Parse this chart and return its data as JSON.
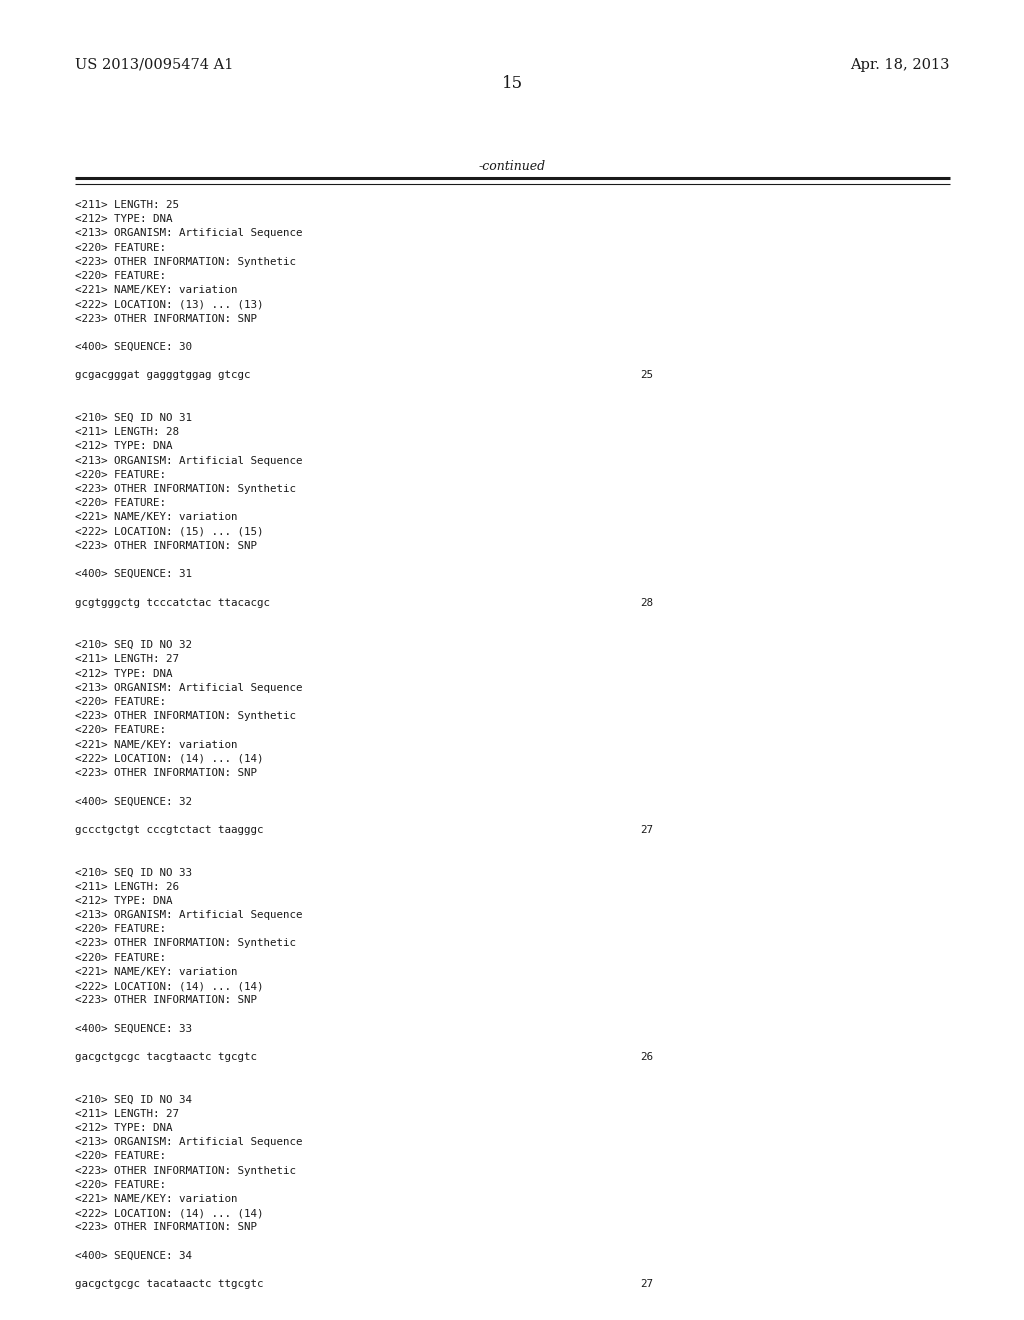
{
  "bg_color": "#ffffff",
  "header_left": "US 2013/0095474 A1",
  "header_right": "Apr. 18, 2013",
  "page_number": "15",
  "continued_label": "-continued",
  "content_lines": [
    {
      "text": "<211> LENGTH: 25",
      "indent": false
    },
    {
      "text": "<212> TYPE: DNA",
      "indent": false
    },
    {
      "text": "<213> ORGANISM: Artificial Sequence",
      "indent": false
    },
    {
      "text": "<220> FEATURE:",
      "indent": false
    },
    {
      "text": "<223> OTHER INFORMATION: Synthetic",
      "indent": false
    },
    {
      "text": "<220> FEATURE:",
      "indent": false
    },
    {
      "text": "<221> NAME/KEY: variation",
      "indent": false
    },
    {
      "text": "<222> LOCATION: (13) ... (13)",
      "indent": false
    },
    {
      "text": "<223> OTHER INFORMATION: SNP",
      "indent": false
    },
    {
      "text": "",
      "indent": false
    },
    {
      "text": "<400> SEQUENCE: 30",
      "indent": false
    },
    {
      "text": "",
      "indent": false
    },
    {
      "text": "gcgacgggat gagggtggag gtcgc",
      "indent": false,
      "num": "25"
    },
    {
      "text": "",
      "indent": false
    },
    {
      "text": "",
      "indent": false
    },
    {
      "text": "<210> SEQ ID NO 31",
      "indent": false
    },
    {
      "text": "<211> LENGTH: 28",
      "indent": false
    },
    {
      "text": "<212> TYPE: DNA",
      "indent": false
    },
    {
      "text": "<213> ORGANISM: Artificial Sequence",
      "indent": false
    },
    {
      "text": "<220> FEATURE:",
      "indent": false
    },
    {
      "text": "<223> OTHER INFORMATION: Synthetic",
      "indent": false
    },
    {
      "text": "<220> FEATURE:",
      "indent": false
    },
    {
      "text": "<221> NAME/KEY: variation",
      "indent": false
    },
    {
      "text": "<222> LOCATION: (15) ... (15)",
      "indent": false
    },
    {
      "text": "<223> OTHER INFORMATION: SNP",
      "indent": false
    },
    {
      "text": "",
      "indent": false
    },
    {
      "text": "<400> SEQUENCE: 31",
      "indent": false
    },
    {
      "text": "",
      "indent": false
    },
    {
      "text": "gcgtgggctg tcccatctac ttacacgc",
      "indent": false,
      "num": "28"
    },
    {
      "text": "",
      "indent": false
    },
    {
      "text": "",
      "indent": false
    },
    {
      "text": "<210> SEQ ID NO 32",
      "indent": false
    },
    {
      "text": "<211> LENGTH: 27",
      "indent": false
    },
    {
      "text": "<212> TYPE: DNA",
      "indent": false
    },
    {
      "text": "<213> ORGANISM: Artificial Sequence",
      "indent": false
    },
    {
      "text": "<220> FEATURE:",
      "indent": false
    },
    {
      "text": "<223> OTHER INFORMATION: Synthetic",
      "indent": false
    },
    {
      "text": "<220> FEATURE:",
      "indent": false
    },
    {
      "text": "<221> NAME/KEY: variation",
      "indent": false
    },
    {
      "text": "<222> LOCATION: (14) ... (14)",
      "indent": false
    },
    {
      "text": "<223> OTHER INFORMATION: SNP",
      "indent": false
    },
    {
      "text": "",
      "indent": false
    },
    {
      "text": "<400> SEQUENCE: 32",
      "indent": false
    },
    {
      "text": "",
      "indent": false
    },
    {
      "text": "gccctgctgt cccgtctact taagggc",
      "indent": false,
      "num": "27"
    },
    {
      "text": "",
      "indent": false
    },
    {
      "text": "",
      "indent": false
    },
    {
      "text": "<210> SEQ ID NO 33",
      "indent": false
    },
    {
      "text": "<211> LENGTH: 26",
      "indent": false
    },
    {
      "text": "<212> TYPE: DNA",
      "indent": false
    },
    {
      "text": "<213> ORGANISM: Artificial Sequence",
      "indent": false
    },
    {
      "text": "<220> FEATURE:",
      "indent": false
    },
    {
      "text": "<223> OTHER INFORMATION: Synthetic",
      "indent": false
    },
    {
      "text": "<220> FEATURE:",
      "indent": false
    },
    {
      "text": "<221> NAME/KEY: variation",
      "indent": false
    },
    {
      "text": "<222> LOCATION: (14) ... (14)",
      "indent": false
    },
    {
      "text": "<223> OTHER INFORMATION: SNP",
      "indent": false
    },
    {
      "text": "",
      "indent": false
    },
    {
      "text": "<400> SEQUENCE: 33",
      "indent": false
    },
    {
      "text": "",
      "indent": false
    },
    {
      "text": "gacgctgcgc tacgtaactc tgcgtc",
      "indent": false,
      "num": "26"
    },
    {
      "text": "",
      "indent": false
    },
    {
      "text": "",
      "indent": false
    },
    {
      "text": "<210> SEQ ID NO 34",
      "indent": false
    },
    {
      "text": "<211> LENGTH: 27",
      "indent": false
    },
    {
      "text": "<212> TYPE: DNA",
      "indent": false
    },
    {
      "text": "<213> ORGANISM: Artificial Sequence",
      "indent": false
    },
    {
      "text": "<220> FEATURE:",
      "indent": false
    },
    {
      "text": "<223> OTHER INFORMATION: Synthetic",
      "indent": false
    },
    {
      "text": "<220> FEATURE:",
      "indent": false
    },
    {
      "text": "<221> NAME/KEY: variation",
      "indent": false
    },
    {
      "text": "<222> LOCATION: (14) ... (14)",
      "indent": false
    },
    {
      "text": "<223> OTHER INFORMATION: SNP",
      "indent": false
    },
    {
      "text": "",
      "indent": false
    },
    {
      "text": "<400> SEQUENCE: 34",
      "indent": false
    },
    {
      "text": "",
      "indent": false
    },
    {
      "text": "gacgctgcgc tacataactc ttgcgtc",
      "indent": false,
      "num": "27"
    }
  ]
}
